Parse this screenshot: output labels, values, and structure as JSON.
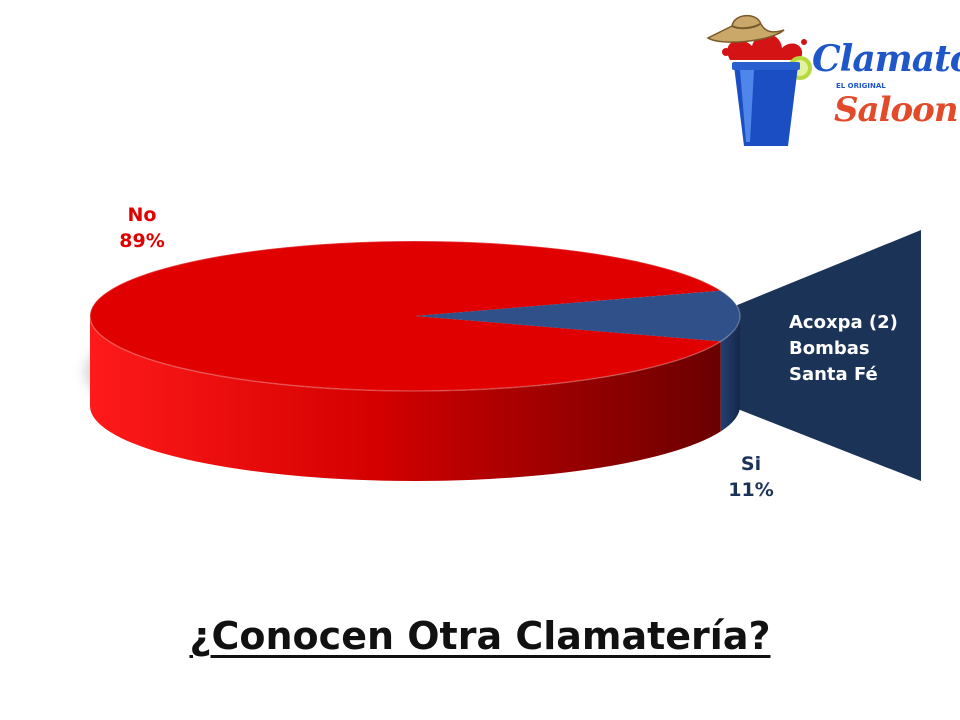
{
  "chart_data": {
    "type": "pie",
    "title": "¿Conocen Otra Clamatería?",
    "categories": [
      "No",
      "Si"
    ],
    "values": [
      89,
      11
    ],
    "value_unit": "%",
    "labels": [
      {
        "category": "No",
        "text": "89%"
      },
      {
        "category": "Si",
        "text": "11%"
      }
    ],
    "colors": [
      "#e00000",
      "#2f5089"
    ],
    "style": "3d-pie",
    "callout": {
      "category": "Si",
      "items": [
        "Acoxpa (2)",
        "Bombas",
        "Santa Fé"
      ],
      "color": "#1c3358"
    }
  },
  "logo": {
    "line1": "Clamato",
    "tagline": "EL ORIGINAL",
    "line2": "Saloon",
    "icon": "cowboy-hat-cup-icon"
  },
  "colors": {
    "no_side": "#c00000",
    "si_side": "#1e3560",
    "title": "#111111"
  }
}
